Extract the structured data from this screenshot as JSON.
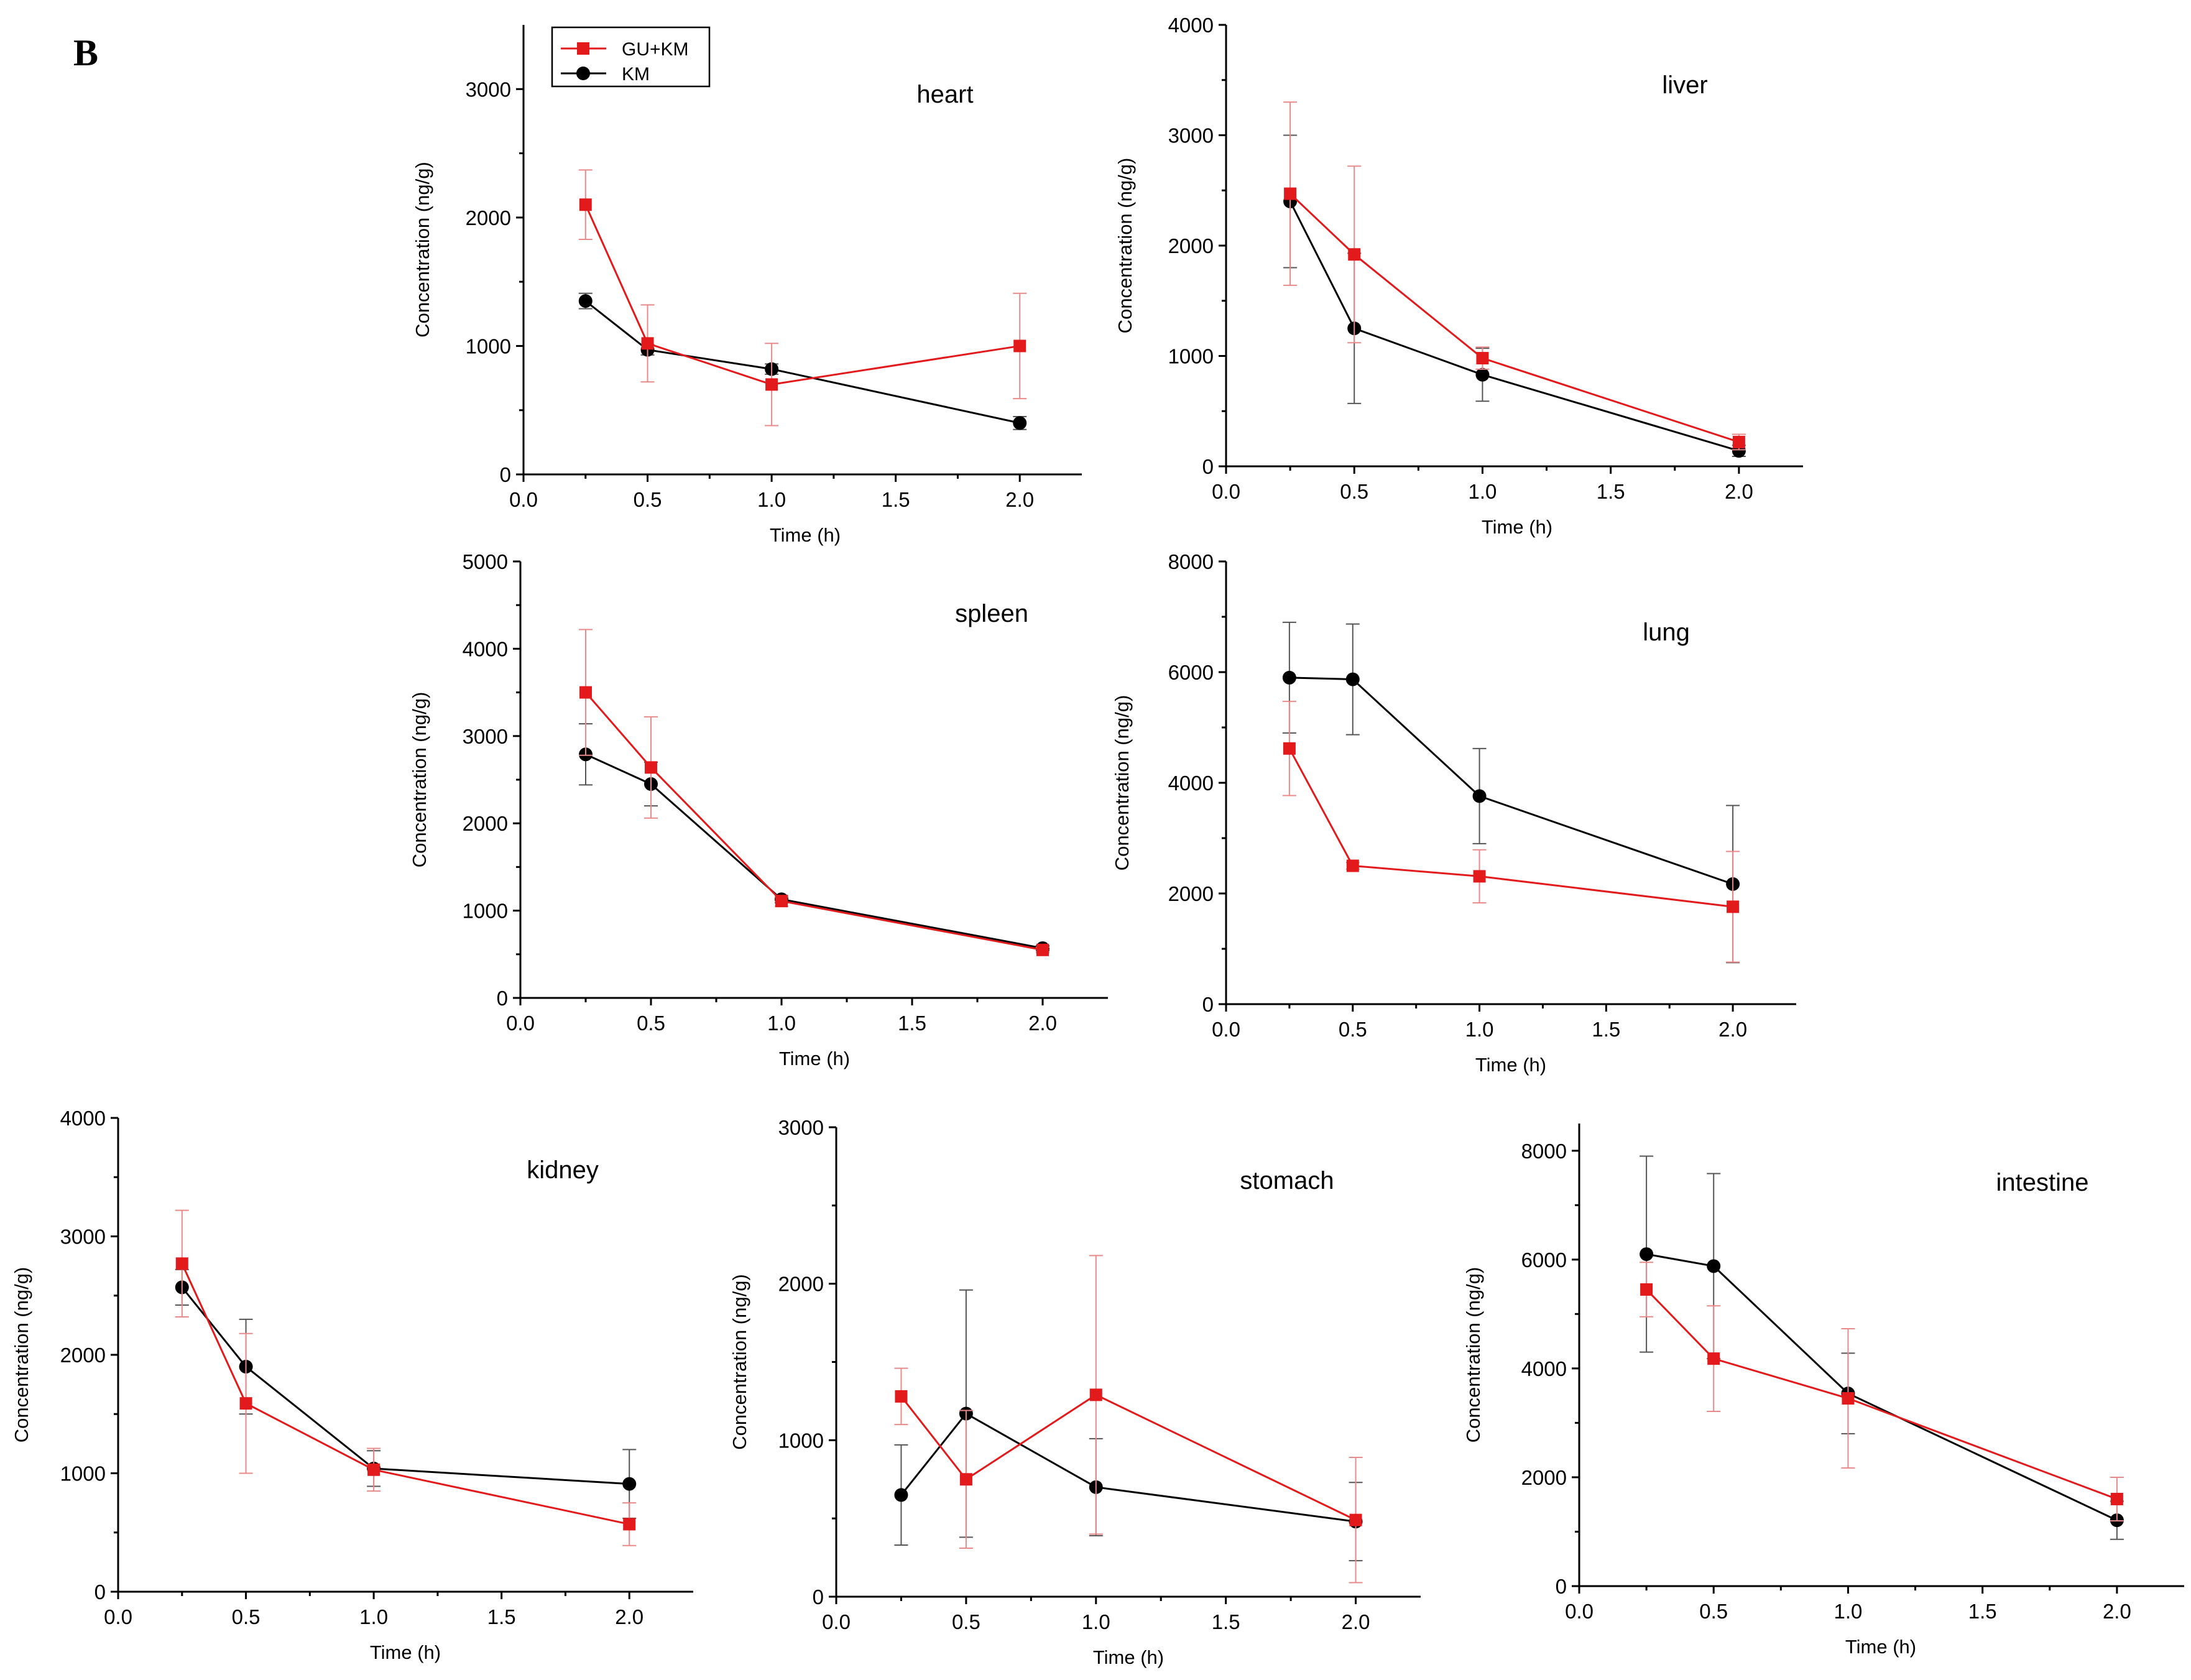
{
  "figure": {
    "panel_letter": "B",
    "colors": {
      "gu_km": "#e31a1c",
      "km": "#000000"
    }
  },
  "legend": {
    "items": [
      {
        "name": "GU+KM",
        "marker": "square",
        "color": "#e31a1c"
      },
      {
        "name": "KM",
        "marker": "circle",
        "color": "#000000"
      }
    ]
  },
  "chart_data": [
    {
      "type": "line",
      "title": "heart",
      "xlabel": "Time (h)",
      "ylabel": "Concentration (ng/g)",
      "xlim": [
        0,
        2.25
      ],
      "ylim": [
        0,
        3500
      ],
      "xticks": [
        0,
        0.5,
        1,
        1.5,
        2
      ],
      "xticklabels": [
        "0.0",
        "0.5",
        "1.0",
        "1.5",
        "2.0"
      ],
      "yticks": [
        0,
        1000,
        2000,
        3000
      ],
      "yticklabels": [
        "0",
        "1000",
        "2000",
        "3000"
      ],
      "x": [
        0.25,
        0.5,
        1.0,
        2.0
      ],
      "series": [
        {
          "name": "GU+KM",
          "values": [
            2100,
            1020,
            700,
            1000
          ],
          "errors": [
            270,
            300,
            320,
            410
          ]
        },
        {
          "name": "KM",
          "values": [
            1350,
            970,
            820,
            400
          ],
          "errors": [
            60,
            40,
            40,
            50
          ]
        }
      ]
    },
    {
      "type": "line",
      "title": "liver",
      "xlabel": "Time (h)",
      "ylabel": "Concentration (ng/g)",
      "xlim": [
        0,
        2.25
      ],
      "ylim": [
        0,
        4000
      ],
      "xticks": [
        0,
        0.5,
        1,
        1.5,
        2
      ],
      "xticklabels": [
        "0.0",
        "0.5",
        "1.0",
        "1.5",
        "2.0"
      ],
      "yticks": [
        0,
        1000,
        2000,
        3000,
        4000
      ],
      "yticklabels": [
        "0",
        "1000",
        "2000",
        "3000",
        "4000"
      ],
      "x": [
        0.25,
        0.5,
        1.0,
        2.0
      ],
      "series": [
        {
          "name": "GU+KM",
          "values": [
            2470,
            1920,
            980,
            220
          ],
          "errors": [
            830,
            800,
            100,
            70
          ]
        },
        {
          "name": "KM",
          "values": [
            2400,
            1250,
            830,
            140
          ],
          "errors": [
            600,
            680,
            240,
            50
          ]
        }
      ]
    },
    {
      "type": "line",
      "title": "spleen",
      "xlabel": "Time (h)",
      "ylabel": "Concentration (ng/g)",
      "xlim": [
        0,
        2.25
      ],
      "ylim": [
        0,
        5000
      ],
      "xticks": [
        0,
        0.5,
        1,
        1.5,
        2
      ],
      "xticklabels": [
        "0.0",
        "0.5",
        "1.0",
        "1.5",
        "2.0"
      ],
      "yticks": [
        0,
        1000,
        2000,
        3000,
        4000,
        5000
      ],
      "yticklabels": [
        "0",
        "1000",
        "2000",
        "3000",
        "4000",
        "5000"
      ],
      "x": [
        0.25,
        0.5,
        1.0,
        2.0
      ],
      "series": [
        {
          "name": "GU+KM",
          "values": [
            3500,
            2640,
            1110,
            550
          ],
          "errors": [
            720,
            580,
            60,
            30
          ]
        },
        {
          "name": "KM",
          "values": [
            2790,
            2450,
            1130,
            570
          ],
          "errors": [
            350,
            250,
            40,
            30
          ]
        }
      ]
    },
    {
      "type": "line",
      "title": "lung",
      "xlabel": "Time (h)",
      "ylabel": "Concentration (ng/g)",
      "xlim": [
        0,
        2.25
      ],
      "ylim": [
        0,
        8000
      ],
      "xticks": [
        0,
        0.5,
        1,
        1.5,
        2
      ],
      "xticklabels": [
        "0.0",
        "0.5",
        "1.0",
        "1.5",
        "2.0"
      ],
      "yticks": [
        0,
        2000,
        4000,
        6000,
        8000
      ],
      "yticklabels": [
        "0",
        "2000",
        "4000",
        "6000",
        "8000"
      ],
      "x": [
        0.25,
        0.5,
        1.0,
        2.0
      ],
      "series": [
        {
          "name": "GU+KM",
          "values": [
            4620,
            2500,
            2310,
            1760
          ],
          "errors": [
            850,
            60,
            480,
            1000
          ]
        },
        {
          "name": "KM",
          "values": [
            5900,
            5870,
            3760,
            2170
          ],
          "errors": [
            1000,
            1000,
            860,
            1420
          ]
        }
      ]
    },
    {
      "type": "line",
      "title": "kidney",
      "xlabel": "Time (h)",
      "ylabel": "Concentration (ng/g)",
      "xlim": [
        0,
        2.25
      ],
      "ylim": [
        0,
        4000
      ],
      "xticks": [
        0,
        0.5,
        1,
        1.5,
        2
      ],
      "xticklabels": [
        "0.0",
        "0.5",
        "1.0",
        "1.5",
        "2.0"
      ],
      "yticks": [
        0,
        1000,
        2000,
        3000,
        4000
      ],
      "yticklabels": [
        "0",
        "1000",
        "2000",
        "3000",
        "4000"
      ],
      "x": [
        0.25,
        0.5,
        1.0,
        2.0
      ],
      "series": [
        {
          "name": "GU+KM",
          "values": [
            2770,
            1590,
            1030,
            570
          ],
          "errors": [
            450,
            590,
            180,
            180
          ]
        },
        {
          "name": "KM",
          "values": [
            2570,
            1900,
            1040,
            910
          ],
          "errors": [
            150,
            400,
            150,
            290
          ]
        }
      ]
    },
    {
      "type": "line",
      "title": "stomach",
      "xlabel": "Time (h)",
      "ylabel": "Concentration (ng/g)",
      "xlim": [
        0,
        2.25
      ],
      "ylim": [
        0,
        3000
      ],
      "xticks": [
        0,
        0.5,
        1,
        1.5,
        2
      ],
      "xticklabels": [
        "0.0",
        "0.5",
        "1.0",
        "1.5",
        "2.0"
      ],
      "yticks": [
        0,
        1000,
        2000,
        3000
      ],
      "yticklabels": [
        "0",
        "1000",
        "2000",
        "3000"
      ],
      "x": [
        0.25,
        0.5,
        1.0,
        2.0
      ],
      "series": [
        {
          "name": "GU+KM",
          "values": [
            1280,
            750,
            1290,
            490
          ],
          "errors": [
            180,
            440,
            890,
            400
          ]
        },
        {
          "name": "KM",
          "values": [
            650,
            1170,
            700,
            480
          ],
          "errors": [
            320,
            790,
            310,
            250
          ]
        }
      ]
    },
    {
      "type": "line",
      "title": "intestine",
      "xlabel": "Time (h)",
      "ylabel": "Concentration (ng/g)",
      "xlim": [
        0,
        2.25
      ],
      "ylim": [
        0,
        8500
      ],
      "xticks": [
        0,
        0.5,
        1,
        1.5,
        2
      ],
      "xticklabels": [
        "0.0",
        "0.5",
        "1.0",
        "1.5",
        "2.0"
      ],
      "yticks": [
        0,
        2000,
        4000,
        6000,
        8000
      ],
      "yticklabels": [
        "0",
        "2000",
        "4000",
        "6000",
        "8000"
      ],
      "x": [
        0.25,
        0.5,
        1.0,
        2.0
      ],
      "series": [
        {
          "name": "GU+KM",
          "values": [
            5450,
            4180,
            3450,
            1600
          ],
          "errors": [
            500,
            970,
            1280,
            400
          ]
        },
        {
          "name": "KM",
          "values": [
            6100,
            5880,
            3540,
            1210
          ],
          "errors": [
            1800,
            1700,
            740,
            350
          ]
        }
      ]
    }
  ]
}
